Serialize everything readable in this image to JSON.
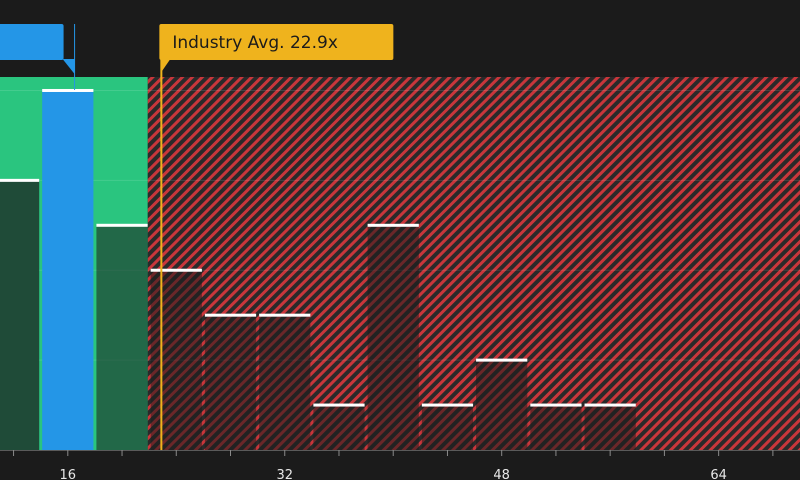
{
  "chart_data": {
    "type": "bar",
    "xlabel": "",
    "ylabel": "",
    "xlim": [
      11,
      70
    ],
    "ylim": [
      0,
      8.3
    ],
    "x_ticks": [
      16,
      32,
      48,
      64
    ],
    "x_tick_labels": [
      "16",
      "32",
      "48",
      "64"
    ],
    "bin_width": 4,
    "bins": [
      {
        "start": 10,
        "value": 6,
        "highlight": false
      },
      {
        "start": 14,
        "value": 8,
        "highlight": true
      },
      {
        "start": 18,
        "value": 5,
        "highlight": false
      },
      {
        "start": 22,
        "value": 4,
        "highlight": false
      },
      {
        "start": 26,
        "value": 3,
        "highlight": false
      },
      {
        "start": 30,
        "value": 3,
        "highlight": false
      },
      {
        "start": 34,
        "value": 1,
        "highlight": false
      },
      {
        "start": 38,
        "value": 5,
        "highlight": false
      },
      {
        "start": 42,
        "value": 1,
        "highlight": false
      },
      {
        "start": 46,
        "value": 2,
        "highlight": false
      },
      {
        "start": 50,
        "value": 1,
        "highlight": false
      },
      {
        "start": 54,
        "value": 1,
        "highlight": false
      }
    ],
    "fair_zone_end": 21.9,
    "industry_avg": {
      "label": "Industry Avg. 22.9x",
      "value": 22.9
    },
    "company_marker": {
      "label": "",
      "value": 16.5
    },
    "grid": true,
    "colors": {
      "background": "#1b1b1b",
      "fair_zone": "#2ac57f",
      "expensive_zone": "#c9363b",
      "bar": "#1f4b38",
      "bar_expensive": "#2b2b2b",
      "highlight_bar": "#2496e7",
      "bar_cap": "#ffffff",
      "industry_avg": "#efb31d",
      "axis_text": "#e8e8e8"
    }
  }
}
